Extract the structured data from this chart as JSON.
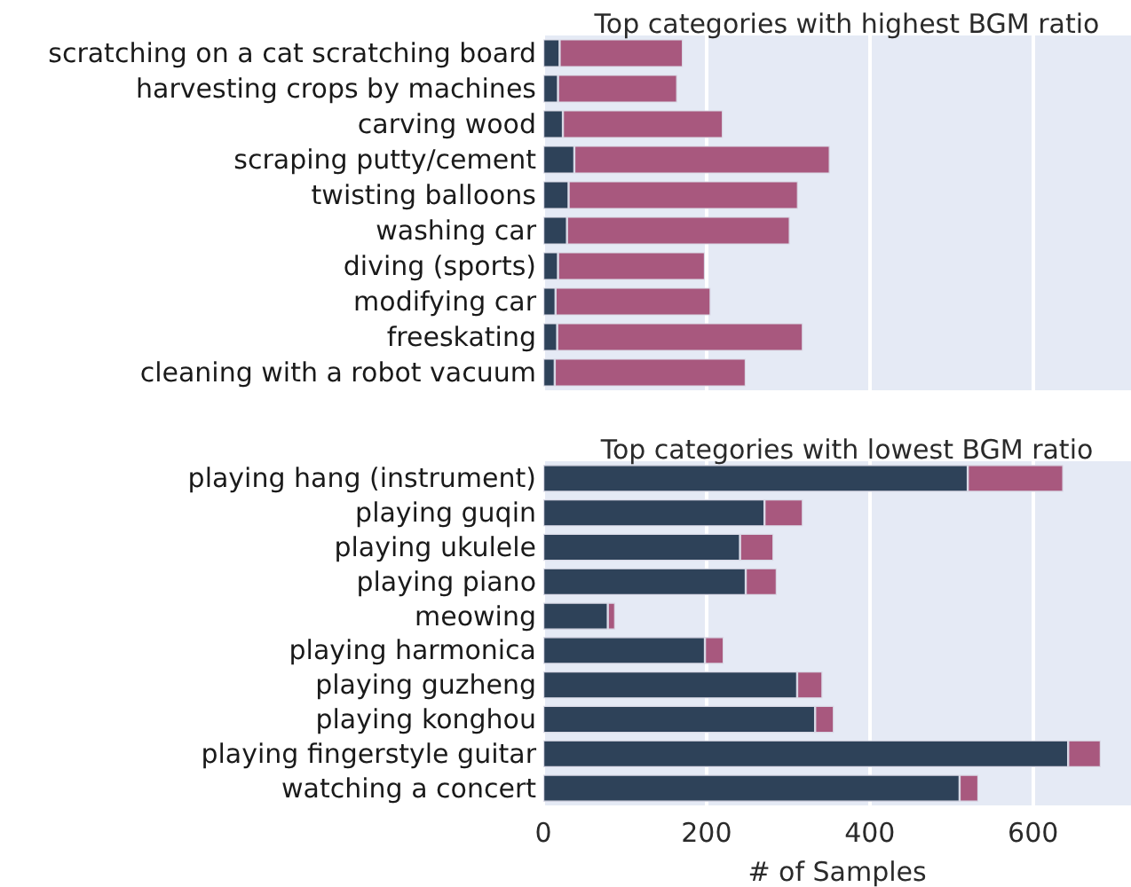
{
  "chart_data": [
    {
      "type": "bar",
      "orientation": "horizontal",
      "stacked": true,
      "title": "Top categories with highest BGM ratio",
      "categories": [
        "scratching on a cat scratching board",
        "harvesting crops by machines",
        "carving wood",
        "scraping putty/cement",
        "twisting balloons",
        "washing car",
        "diving (sports)",
        "modifying car",
        "freeskating",
        "cleaning with a robot vacuum"
      ],
      "series": [
        {
          "color": "#2e4259",
          "values": [
            20,
            18,
            24,
            38,
            31,
            29,
            18,
            15,
            17,
            14
          ]
        },
        {
          "color": "#a8587e",
          "values": [
            151,
            146,
            196,
            313,
            281,
            273,
            180,
            190,
            301,
            234
          ]
        }
      ],
      "xlim": [
        0,
        720
      ],
      "xticks": [
        0,
        200,
        400,
        600
      ],
      "grid": "x",
      "tick_labels": "y"
    },
    {
      "type": "bar",
      "orientation": "horizontal",
      "stacked": true,
      "title": "Top categories with lowest BGM ratio",
      "xlabel": "# of Samples",
      "categories": [
        "playing hang (instrument)",
        "playing guqin",
        "playing ukulele",
        "playing piano",
        "meowing",
        "playing harmonica",
        "playing guzheng",
        "playing konghou",
        "playing fingerstyle guitar",
        "watching a concert"
      ],
      "series": [
        {
          "color": "#2e4259",
          "values": [
            520,
            271,
            241,
            248,
            79,
            198,
            311,
            333,
            643,
            510
          ]
        },
        {
          "color": "#a8587e",
          "values": [
            117,
            47,
            41,
            38,
            9,
            23,
            31,
            23,
            40,
            23
          ]
        }
      ],
      "xlim": [
        0,
        720
      ],
      "xticks": [
        0,
        200,
        400,
        600
      ],
      "grid": "x"
    }
  ]
}
